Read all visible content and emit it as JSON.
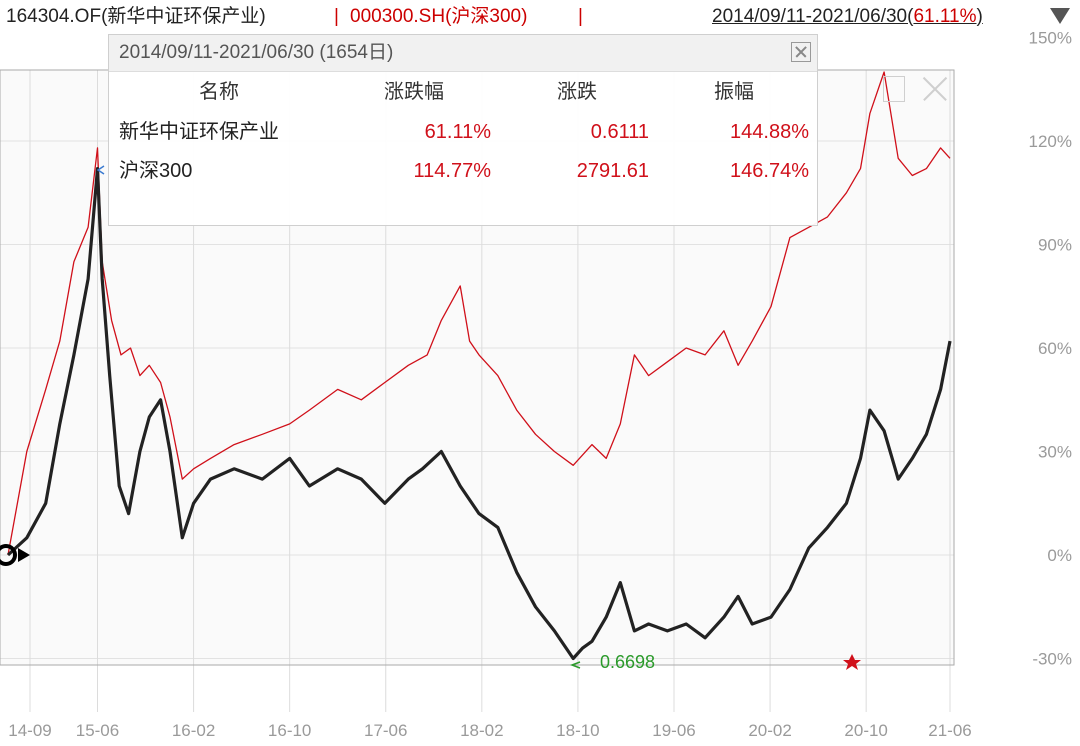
{
  "header": {
    "fund_label": "164304.OF(新华中证环保产业)",
    "separator": "|",
    "index_label": "000300.SH(沪深300)",
    "range_text": "2014/09/11-2021/06/30(",
    "range_pct": "61.11%",
    "range_close": ")"
  },
  "tooltip": {
    "title": "2014/09/11-2021/06/30 (1654日)",
    "headers": {
      "name": "名称",
      "change_pct": "涨跌幅",
      "change": "涨跌",
      "amplitude": "振幅"
    },
    "rows": [
      {
        "name": "新华中证环保产业",
        "change_pct": "61.11%",
        "change": "0.6111",
        "amplitude": "144.88%"
      },
      {
        "name": "沪深300",
        "change_pct": "114.77%",
        "change": "2791.61",
        "amplitude": "146.74%"
      }
    ]
  },
  "min_marker": {
    "label": "0.6698"
  },
  "chart_data": {
    "type": "line",
    "y_tick_labels": [
      "150%",
      "120%",
      "90%",
      "60%",
      "30%",
      "0%",
      "-30%"
    ],
    "y_ticks": [
      150,
      120,
      90,
      60,
      30,
      0,
      -30
    ],
    "ylim": [
      -30,
      145
    ],
    "x_tick_labels": [
      "14-09",
      "15-06",
      "16-02",
      "16-10",
      "17-06",
      "18-02",
      "18-10",
      "19-06",
      "20-02",
      "20-10",
      "21-06"
    ],
    "x_ticks": [
      0,
      0.095,
      0.197,
      0.299,
      0.401,
      0.503,
      0.605,
      0.707,
      0.809,
      0.911,
      1.0
    ],
    "grid": true,
    "colors": {
      "fund": "#222222",
      "index": "#d0101a"
    },
    "series": [
      {
        "name": "新华中证环保产业",
        "x": [
          0,
          0.02,
          0.04,
          0.055,
          0.07,
          0.085,
          0.095,
          0.1,
          0.108,
          0.118,
          0.128,
          0.14,
          0.15,
          0.162,
          0.172,
          0.185,
          0.197,
          0.215,
          0.24,
          0.27,
          0.299,
          0.32,
          0.35,
          0.375,
          0.4,
          0.425,
          0.44,
          0.46,
          0.48,
          0.5,
          0.52,
          0.54,
          0.56,
          0.58,
          0.6,
          0.61,
          0.62,
          0.635,
          0.65,
          0.665,
          0.68,
          0.7,
          0.72,
          0.74,
          0.76,
          0.775,
          0.79,
          0.81,
          0.83,
          0.85,
          0.87,
          0.89,
          0.905,
          0.915,
          0.93,
          0.945,
          0.96,
          0.975,
          0.99,
          1.0
        ],
        "y": [
          0,
          5,
          15,
          38,
          58,
          80,
          112,
          80,
          52,
          20,
          12,
          30,
          40,
          45,
          30,
          5,
          15,
          22,
          25,
          22,
          28,
          20,
          25,
          22,
          15,
          22,
          25,
          30,
          20,
          12,
          8,
          -5,
          -15,
          -22,
          -30,
          -27,
          -25,
          -18,
          -8,
          -22,
          -20,
          -22,
          -20,
          -24,
          -18,
          -12,
          -20,
          -18,
          -10,
          2,
          8,
          15,
          28,
          42,
          36,
          22,
          28,
          35,
          48,
          62
        ]
      },
      {
        "name": "沪深300",
        "x": [
          0,
          0.02,
          0.04,
          0.055,
          0.07,
          0.085,
          0.095,
          0.1,
          0.11,
          0.12,
          0.13,
          0.14,
          0.15,
          0.162,
          0.172,
          0.185,
          0.197,
          0.215,
          0.24,
          0.27,
          0.299,
          0.32,
          0.35,
          0.375,
          0.4,
          0.425,
          0.445,
          0.46,
          0.48,
          0.49,
          0.5,
          0.52,
          0.54,
          0.56,
          0.58,
          0.6,
          0.62,
          0.635,
          0.65,
          0.665,
          0.68,
          0.7,
          0.72,
          0.74,
          0.76,
          0.775,
          0.79,
          0.81,
          0.83,
          0.85,
          0.87,
          0.89,
          0.905,
          0.915,
          0.93,
          0.945,
          0.96,
          0.975,
          0.99,
          1.0
        ],
        "y": [
          0,
          30,
          48,
          62,
          85,
          95,
          118,
          85,
          68,
          58,
          60,
          52,
          55,
          50,
          40,
          22,
          25,
          28,
          32,
          35,
          38,
          42,
          48,
          45,
          50,
          55,
          58,
          68,
          78,
          62,
          58,
          52,
          42,
          35,
          30,
          26,
          32,
          28,
          38,
          58,
          52,
          56,
          60,
          58,
          65,
          55,
          62,
          72,
          92,
          95,
          98,
          105,
          112,
          128,
          140,
          115,
          110,
          112,
          118,
          115
        ]
      }
    ]
  }
}
